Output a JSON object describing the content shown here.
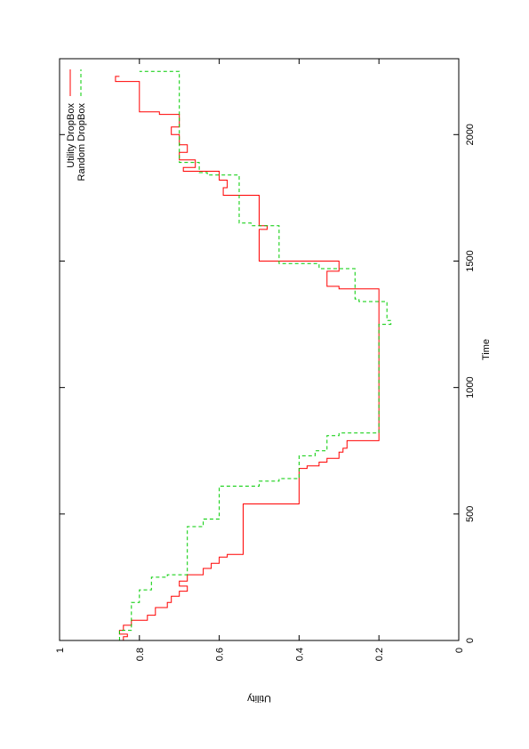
{
  "chart_data": {
    "type": "line",
    "orientation": "rotated-90-counterclockwise",
    "title": "",
    "xlabel": "Time",
    "ylabel": "Utility",
    "xlim": [
      0,
      2300
    ],
    "ylim": [
      0,
      1
    ],
    "xticks": [
      0,
      500,
      1000,
      1500,
      2000
    ],
    "yticks": [
      0,
      0.2,
      0.4,
      0.6,
      0.8,
      1
    ],
    "xtick_labels": [
      "0",
      "500",
      "1000",
      "1500",
      "2000"
    ],
    "ytick_labels": [
      "0",
      "0.2",
      "0.4",
      "0.6",
      "0.8",
      "1"
    ],
    "grid": false,
    "legend_position": "top-right",
    "series": [
      {
        "name": "Utility DropBox",
        "color": "#ff0000",
        "dash": "solid",
        "x": [
          0,
          15,
          25,
          40,
          60,
          80,
          100,
          130,
          150,
          175,
          195,
          215,
          235,
          260,
          285,
          305,
          330,
          340,
          540,
          680,
          690,
          705,
          720,
          745,
          760,
          790,
          1390,
          1400,
          1460,
          1500,
          1625,
          1640,
          1760,
          1790,
          1820,
          1855,
          1870,
          1900,
          1930,
          1960,
          2000,
          2030,
          2080,
          2090,
          2210,
          2230
        ],
        "y": [
          0.84,
          0.83,
          0.85,
          0.84,
          0.82,
          0.78,
          0.76,
          0.73,
          0.72,
          0.7,
          0.68,
          0.7,
          0.68,
          0.64,
          0.62,
          0.6,
          0.58,
          0.54,
          0.4,
          0.38,
          0.35,
          0.33,
          0.3,
          0.29,
          0.28,
          0.2,
          0.3,
          0.33,
          0.3,
          0.5,
          0.48,
          0.5,
          0.59,
          0.58,
          0.6,
          0.69,
          0.66,
          0.7,
          0.68,
          0.7,
          0.72,
          0.7,
          0.75,
          0.8,
          0.86,
          0.85
        ]
      },
      {
        "name": "Random DropBox",
        "color": "#00cc00",
        "dash": "dashed",
        "x": [
          0,
          40,
          150,
          200,
          250,
          260,
          450,
          480,
          610,
          630,
          640,
          730,
          750,
          810,
          820,
          1250,
          1265,
          1340,
          1350,
          1470,
          1490,
          1640,
          1650,
          1840,
          1850,
          1880,
          1890,
          2250
        ],
        "y": [
          0.85,
          0.82,
          0.8,
          0.77,
          0.73,
          0.68,
          0.64,
          0.6,
          0.5,
          0.45,
          0.4,
          0.36,
          0.33,
          0.3,
          0.2,
          0.17,
          0.18,
          0.25,
          0.26,
          0.35,
          0.45,
          0.52,
          0.55,
          0.63,
          0.65,
          0.65,
          0.7,
          0.8
        ]
      }
    ]
  }
}
